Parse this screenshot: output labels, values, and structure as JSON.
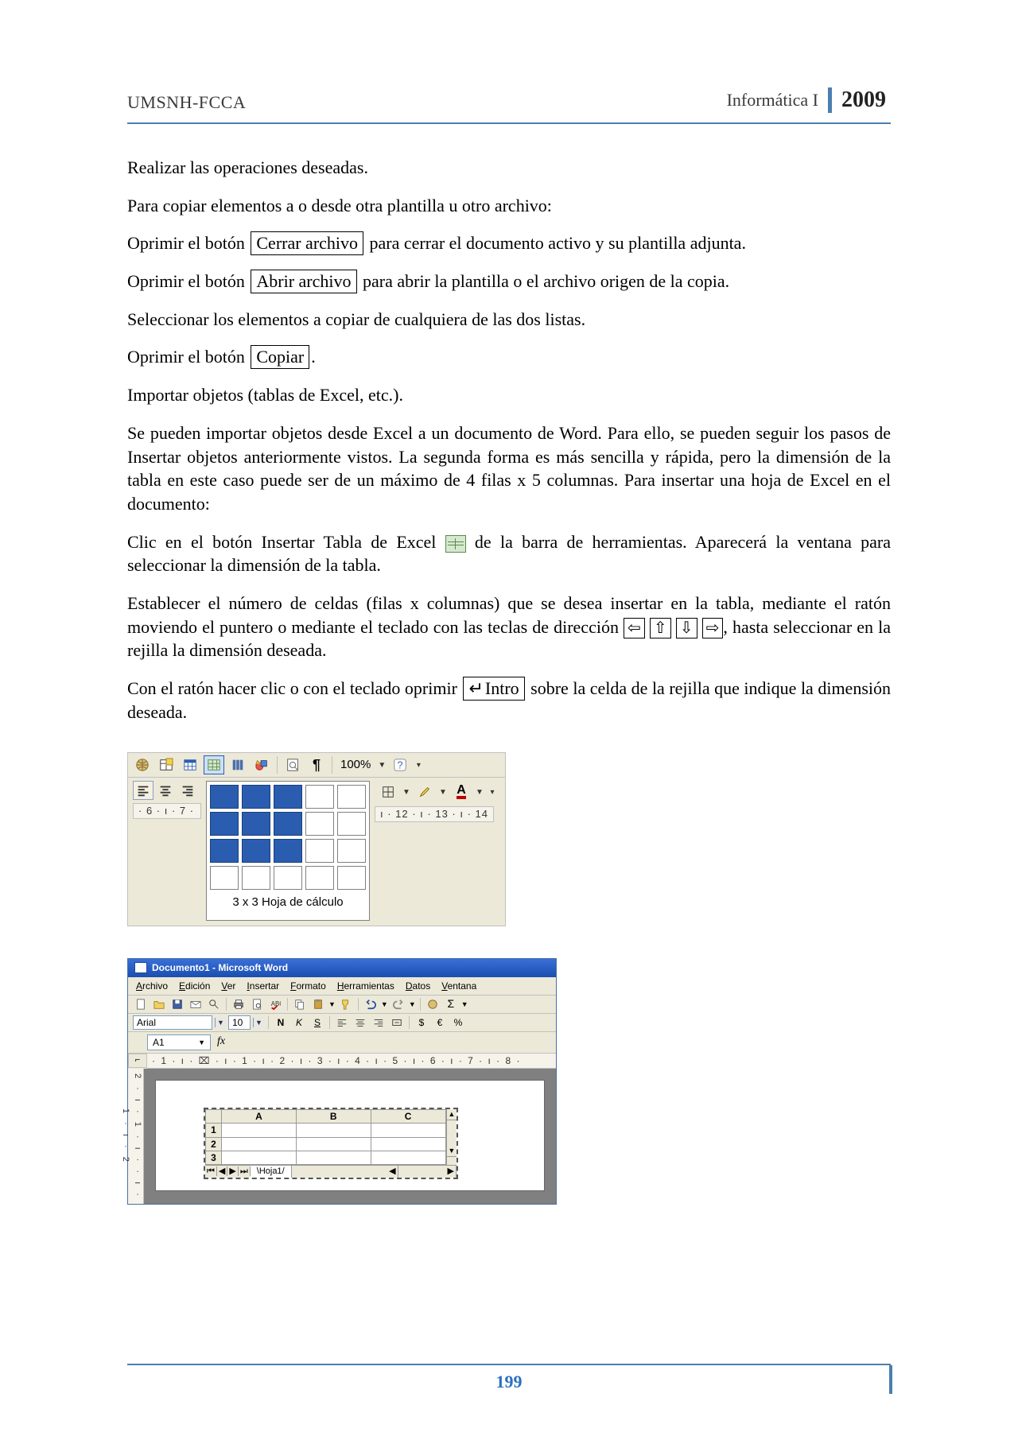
{
  "header": {
    "left": "UMSNH-FCCA",
    "subject": "Informática I",
    "year": "2009"
  },
  "paragraphs": {
    "p1": "Realizar las operaciones deseadas.",
    "p2": "Para copiar elementos a o desde otra plantilla u otro archivo:",
    "p3a": "Oprimir el botón ",
    "p3_btn": "Cerrar archivo",
    "p3b": " para cerrar el documento activo y su plantilla adjunta.",
    "p4a": "Oprimir el botón ",
    "p4_btn": "Abrir archivo",
    "p4b": " para abrir la plantilla o el archivo origen de la copia.",
    "p5": "Seleccionar los elementos a copiar de cualquiera de las dos listas.",
    "p6a": "Oprimir el botón ",
    "p6_btn": "Copiar",
    "p6b": ".",
    "p7": "Importar objetos (tablas de Excel, etc.).",
    "p8": "Se pueden importar objetos desde Excel a un documento de Word. Para ello, se pueden seguir los pasos de Insertar objetos anteriormente vistos. La segunda forma es más sencilla y rápida, pero la dimensión de la tabla en este caso puede ser de un máximo de 4 filas x 5 columnas. Para insertar una hoja de Excel en el documento:",
    "p9a": "Clic en el botón Insertar Tabla de Excel ",
    "p9b": " de la barra de herramientas. Aparecerá la ventana para seleccionar la dimensión de la tabla.",
    "p10a": "Establecer el número de celdas (filas x columnas) que se desea insertar en la tabla, mediante el ratón moviendo el puntero o mediante el teclado con las teclas de dirección ",
    "k_left": "⇦",
    "k_up": "⇧",
    "k_down": "⇩",
    "k_right": "⇨",
    "p10b": ", hasta seleccionar en la rejilla la dimensión deseada.",
    "p11a": "Con el ratón hacer clic o con el teclado oprimir ",
    "p11_btn": "Intro",
    "p11b": " sobre la celda de la rejilla que indique la dimensión deseada."
  },
  "figure1": {
    "toolbar": {
      "zoom": "100%",
      "help": "?"
    },
    "ruler_left": "· 6 · ı · 7 ·",
    "ruler_right": "ı · 12 · ı · 13 · ı · 14",
    "picker": {
      "rows": 4,
      "cols": 5,
      "sel_rows": 3,
      "sel_cols": 3,
      "label": "3 x 3 Hoja de cálculo"
    },
    "font_color_letter": "A",
    "paragraph_mark": "¶"
  },
  "figure2": {
    "title": "Documento1 - Microsoft Word",
    "menus": [
      "Archivo",
      "Edición",
      "Ver",
      "Insertar",
      "Formato",
      "Herramientas",
      "Datos",
      "Ventana"
    ],
    "font_name": "Arial",
    "font_size": "10",
    "bold": "N",
    "italic": "K",
    "underline": "S",
    "currency": "$",
    "euro": "€",
    "percent": "%",
    "sigma": "Σ",
    "cell_ref": "A1",
    "fx": "fx",
    "ruler_h": "· 1 · ı · ⌧ · ı · 1 · ı · 2 · ı · 3 · ı · 4 · ı · 5 · ı · 6 · ı · 7 · ı · 8 ·",
    "ruler_v": "2 · ı · 1 · ı · · ı · 1 · ı · 2",
    "xl_cols": [
      "A",
      "B",
      "C"
    ],
    "xl_rows": [
      "1",
      "2",
      "3"
    ],
    "xl_tab": "Hoja1",
    "nav": [
      "⏮",
      "◀",
      "▶",
      "⏭"
    ],
    "corner": "⌐"
  },
  "footer": {
    "page": "199"
  }
}
